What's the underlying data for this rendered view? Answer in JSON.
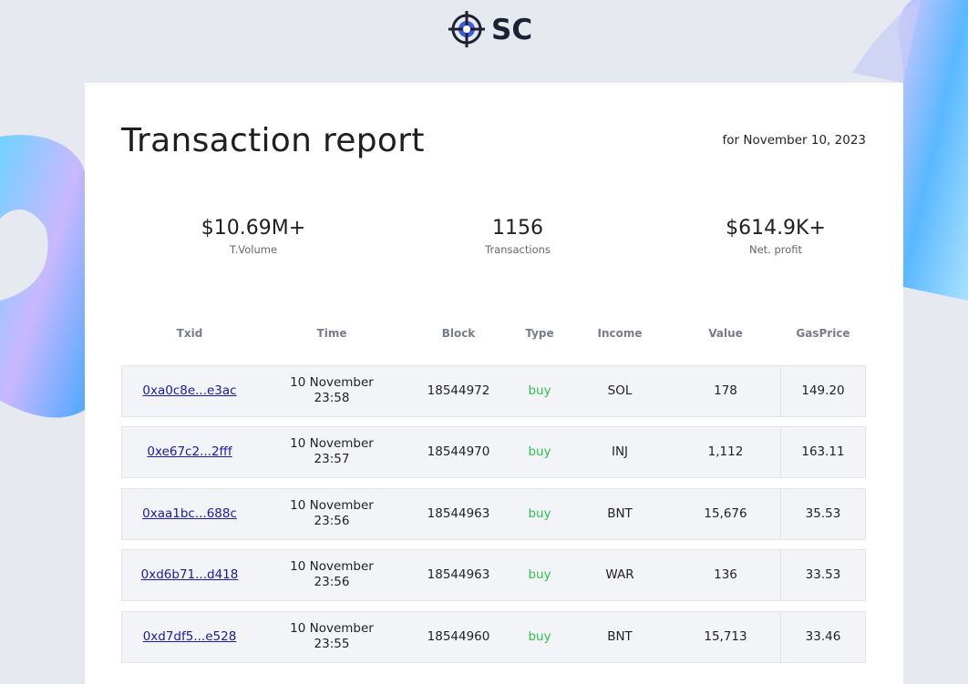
{
  "logo": {
    "text": "SC"
  },
  "header": {
    "title": "Transaction report",
    "date": "for November 10, 2023"
  },
  "stats": [
    {
      "value": "$10.69M+",
      "label": "T.Volume"
    },
    {
      "value": "1156",
      "label": "Transactions"
    },
    {
      "value": "$614.9K+",
      "label": "Net. profit"
    }
  ],
  "table": {
    "columns": [
      "Txid",
      "Time",
      "Block",
      "Type",
      "Income",
      "Value",
      "GasPrice"
    ],
    "rows": [
      {
        "txid": "0xa0c8e...e3ac",
        "date": "10 November",
        "time": "23:58",
        "block": "18544972",
        "type": "buy",
        "income": "SOL",
        "value": "178",
        "gas": "149.20"
      },
      {
        "txid": "0xe67c2...2fff",
        "date": "10 November",
        "time": "23:57",
        "block": "18544970",
        "type": "buy",
        "income": "INJ",
        "value": "1,112",
        "gas": "163.11"
      },
      {
        "txid": "0xaa1bc...688c",
        "date": "10 November",
        "time": "23:56",
        "block": "18544963",
        "type": "buy",
        "income": "BNT",
        "value": "15,676",
        "gas": "35.53"
      },
      {
        "txid": "0xd6b71...d418",
        "date": "10 November",
        "time": "23:56",
        "block": "18544963",
        "type": "buy",
        "income": "WAR",
        "value": "136",
        "gas": "33.53"
      },
      {
        "txid": "0xd7df5...e528",
        "date": "10 November",
        "time": "23:55",
        "block": "18544960",
        "type": "buy",
        "income": "BNT",
        "value": "15,713",
        "gas": "33.46"
      }
    ]
  }
}
